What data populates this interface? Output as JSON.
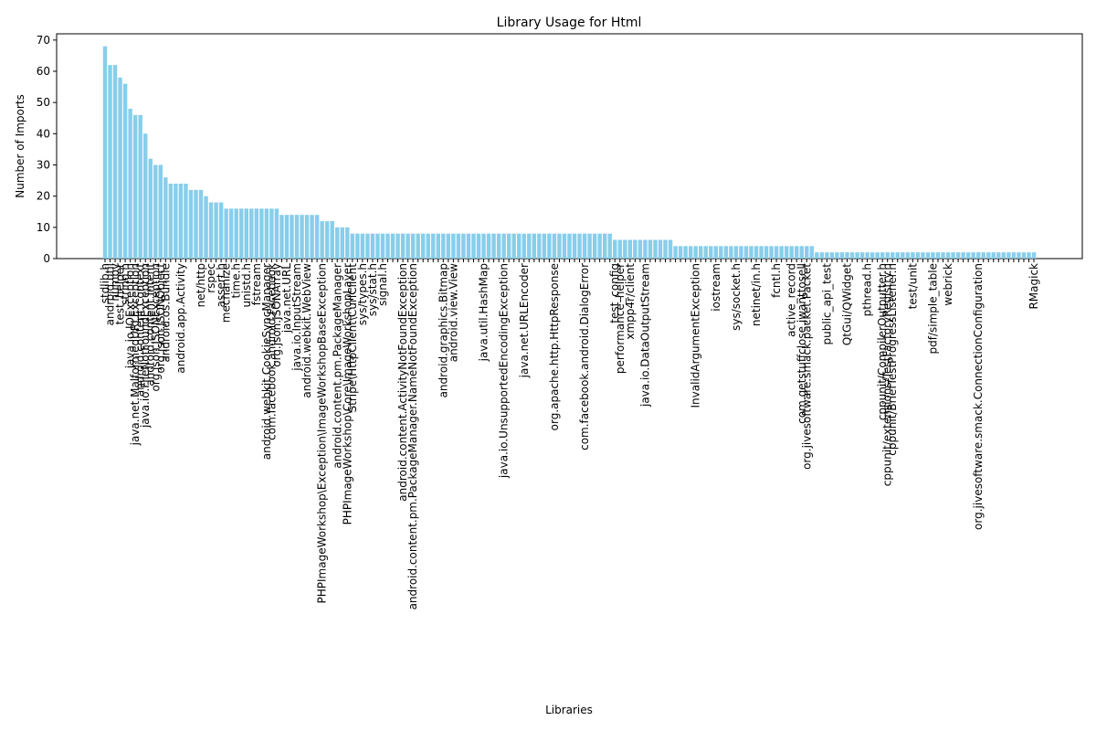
{
  "chart_data": {
    "type": "bar",
    "title": "Library Usage for Html",
    "x_label": "Libraries",
    "y_label": "Number of Imports",
    "color": "#87ceeb",
    "categories": [
      "stdlib.h",
      "android.util",
      "numpy",
      "test_helper",
      "string.h",
      "java.io.IOException",
      "java.net.MalformedURLException",
      "android.content.Context",
      "java.io.FileNotFoundException",
      "android.content.Intent",
      "org.json.JSONException",
      "org.json.JSONObject",
      "android.os.Bundle",
      null,
      null,
      "android.app.Activity",
      null,
      null,
      null,
      "net/http",
      null,
      "rspec",
      null,
      "assert.h",
      "mechanize",
      null,
      "time.h",
      null,
      "unistd.h",
      null,
      "fstream",
      null,
      "android.webkit.CookieSyncManager",
      "com.facebook.android.Facebook",
      "org.json.JSONArray",
      null,
      "java.net.URL",
      null,
      "java.io.InputStream",
      null,
      "android.webkit.WebView",
      null,
      null,
      "PHPImageWorkshop\\Exception\\ImageWorkshopBaseException",
      null,
      null,
      "android.content.pm.PackageManager",
      null,
      "PHPImageWorkshop\\Core\\ImageWorkshopLayer",
      "Stripe\\HttpClient\\CurlClient",
      null,
      "sys/types.h",
      null,
      "sys/stat.h",
      null,
      "signal.h",
      null,
      null,
      null,
      "android.content.ActivityNotFoundException",
      null,
      "android.content.pm.PackageManager.NameNotFoundException",
      null,
      null,
      null,
      null,
      null,
      "android.graphics.Bitmap",
      null,
      "android.view.View",
      null,
      null,
      null,
      null,
      null,
      "java.util.HashMap",
      null,
      null,
      null,
      "java.io.UnsupportedEncodingException",
      null,
      null,
      null,
      "java.net.URLEncoder",
      null,
      null,
      null,
      null,
      null,
      "org.apache.http.HttpResponse",
      null,
      null,
      null,
      null,
      null,
      "com.facebook.android.DialogError",
      null,
      null,
      null,
      null,
      null,
      "test_config",
      "performance_helper",
      null,
      "xmpp4r/client",
      null,
      null,
      "java.io.DataOutputStream",
      null,
      null,
      null,
      null,
      null,
      null,
      null,
      null,
      null,
      "InvalidArgumentException",
      null,
      null,
      null,
      "iostream",
      null,
      null,
      null,
      "sys/socket.h",
      null,
      null,
      null,
      "netinet/in.h",
      null,
      null,
      null,
      "fcntl.h",
      null,
      null,
      "active_record",
      null,
      "com.getstuffclose.jwanttosell",
      "org.jivesoftware.smack.packet.Packet",
      null,
      null,
      null,
      "public_api_test",
      null,
      null,
      null,
      "QtGui/QWidget",
      null,
      null,
      null,
      "pthread.h",
      null,
      null,
      "cppunit/CompilerOutputter.h",
      "cppunit/extensions/TestFactoryRegistry.h",
      "cppunit/BriefTestProgressListener.h",
      null,
      null,
      null,
      "test/unit",
      null,
      null,
      null,
      "pdf/simple_table",
      null,
      null,
      "webrick",
      null,
      null,
      null,
      null,
      null,
      "org.jivesoftware.smack.ConnectionConfiguration",
      null,
      null,
      null,
      null,
      null,
      null,
      null,
      null,
      null,
      null,
      "RMagick"
    ],
    "values": [
      68,
      62,
      62,
      58,
      56,
      48,
      46,
      46,
      40,
      32,
      30,
      30,
      26,
      24,
      24,
      24,
      24,
      22,
      22,
      22,
      20,
      18,
      18,
      18,
      16,
      16,
      16,
      16,
      16,
      16,
      16,
      16,
      16,
      16,
      16,
      14,
      14,
      14,
      14,
      14,
      14,
      14,
      14,
      12,
      12,
      12,
      10,
      10,
      10,
      8,
      8,
      8,
      8,
      8,
      8,
      8,
      8,
      8,
      8,
      8,
      8,
      8,
      8,
      8,
      8,
      8,
      8,
      8,
      8,
      8,
      8,
      8,
      8,
      8,
      8,
      8,
      8,
      8,
      8,
      8,
      8,
      8,
      8,
      8,
      8,
      8,
      8,
      8,
      8,
      8,
      8,
      8,
      8,
      8,
      8,
      8,
      8,
      8,
      8,
      8,
      8,
      6,
      6,
      6,
      6,
      6,
      6,
      6,
      6,
      6,
      6,
      6,
      6,
      4,
      4,
      4,
      4,
      4,
      4,
      4,
      4,
      4,
      4,
      4,
      4,
      4,
      4,
      4,
      4,
      4,
      4,
      4,
      4,
      4,
      4,
      4,
      4,
      4,
      4,
      4,
      4,
      2,
      2,
      2,
      2,
      2,
      2,
      2,
      2,
      2,
      2,
      2,
      2,
      2,
      2,
      2,
      2,
      2,
      2,
      2,
      2,
      2,
      2,
      2,
      2,
      2,
      2,
      2,
      2,
      2,
      2,
      2,
      2,
      2,
      2,
      2,
      2,
      2,
      2,
      2,
      2,
      2,
      2,
      2,
      2
    ],
    "ylim": [
      0,
      72
    ],
    "yticks": [
      0,
      10,
      20,
      30,
      40,
      50,
      60,
      70
    ],
    "grid": false
  }
}
